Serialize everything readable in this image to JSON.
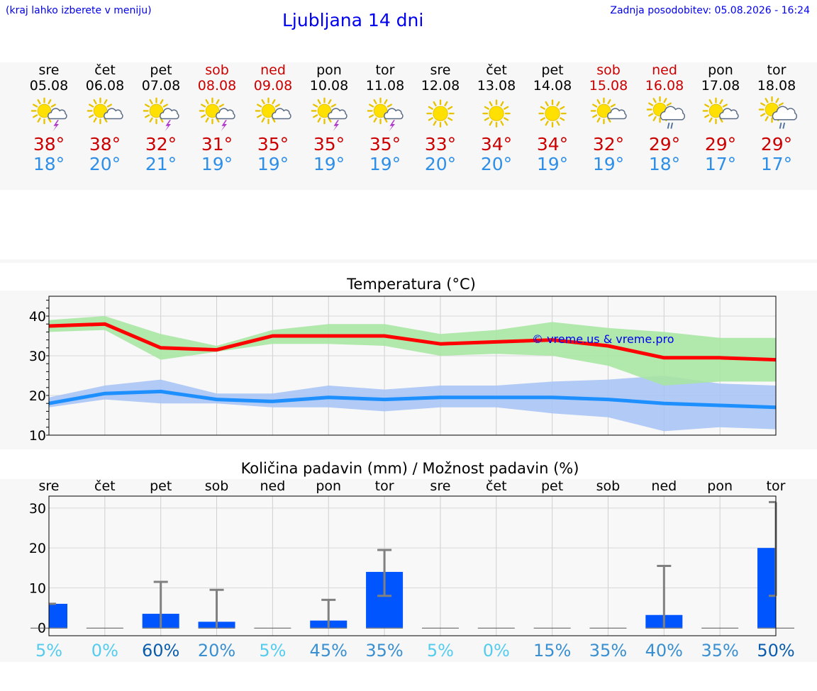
{
  "header": {
    "note": "(kraj lahko izberete v meniju)",
    "title": "Ljubljana 14 dni",
    "updated": "Zadnja posodobitev: 05.08.2026 - 16:24"
  },
  "days": [
    {
      "name": "sre",
      "date": "05.08",
      "weekend": false,
      "icon": "sun-cloud-thunder-icon",
      "tmax": "38°",
      "tmin": "18°"
    },
    {
      "name": "čet",
      "date": "06.08",
      "weekend": false,
      "icon": "sun-cloud-icon",
      "tmax": "38°",
      "tmin": "20°"
    },
    {
      "name": "pet",
      "date": "07.08",
      "weekend": false,
      "icon": "sun-cloud-thunder-icon",
      "tmax": "32°",
      "tmin": "21°"
    },
    {
      "name": "sob",
      "date": "08.08",
      "weekend": true,
      "icon": "sun-cloud-thunder-icon",
      "tmax": "31°",
      "tmin": "19°"
    },
    {
      "name": "ned",
      "date": "09.08",
      "weekend": true,
      "icon": "sun-cloud-icon",
      "tmax": "35°",
      "tmin": "19°"
    },
    {
      "name": "pon",
      "date": "10.08",
      "weekend": false,
      "icon": "sun-cloud-thunder-icon",
      "tmax": "35°",
      "tmin": "19°"
    },
    {
      "name": "tor",
      "date": "11.08",
      "weekend": false,
      "icon": "sun-cloud-thunder-icon",
      "tmax": "35°",
      "tmin": "19°"
    },
    {
      "name": "sre",
      "date": "12.08",
      "weekend": false,
      "icon": "sun-icon",
      "tmax": "33°",
      "tmin": "20°"
    },
    {
      "name": "čet",
      "date": "13.08",
      "weekend": false,
      "icon": "sun-icon",
      "tmax": "34°",
      "tmin": "20°"
    },
    {
      "name": "pet",
      "date": "14.08",
      "weekend": false,
      "icon": "sun-icon",
      "tmax": "34°",
      "tmin": "19°"
    },
    {
      "name": "sob",
      "date": "15.08",
      "weekend": true,
      "icon": "sun-cloud-icon",
      "tmax": "32°",
      "tmin": "19°"
    },
    {
      "name": "ned",
      "date": "16.08",
      "weekend": true,
      "icon": "sun-cloud-rain-icon",
      "tmax": "29°",
      "tmin": "18°"
    },
    {
      "name": "pon",
      "date": "17.08",
      "weekend": false,
      "icon": "sun-cloud-icon",
      "tmax": "29°",
      "tmin": "17°"
    },
    {
      "name": "tor",
      "date": "18.08",
      "weekend": false,
      "icon": "sun-cloud-rain-icon",
      "tmax": "29°",
      "tmin": "17°"
    }
  ],
  "colors": {
    "max_line": "#ff0000",
    "max_band": "#a8e6a3",
    "min_line": "#1e8fff",
    "min_band": "#a9c4f5",
    "bar": "#0055ff",
    "errbar": "#808080",
    "watermark": "#0000ee",
    "weekend": "#cc0000",
    "min_temp": "#2e8fe8"
  },
  "chart_data": [
    {
      "type": "line",
      "title": "Temperatura (°C)",
      "watermark": "© vreme.us & vreme.pro",
      "ylim": [
        10,
        45
      ],
      "yticks": [
        10,
        20,
        30,
        40
      ],
      "x": [
        "05.08",
        "06.08",
        "07.08",
        "08.08",
        "09.08",
        "10.08",
        "11.08",
        "12.08",
        "13.08",
        "14.08",
        "15.08",
        "16.08",
        "17.08",
        "18.08"
      ],
      "series": [
        {
          "role": "max",
          "values": [
            37.5,
            38,
            32,
            31.5,
            35,
            35,
            35,
            33,
            33.5,
            34,
            32.5,
            29.5,
            29.5,
            29
          ],
          "band_high": [
            39,
            40,
            35.5,
            32.5,
            36.5,
            38,
            38,
            35.5,
            36.5,
            38.5,
            37,
            36,
            34.5,
            34.5
          ],
          "band_low": [
            36,
            36.5,
            29,
            31,
            33,
            33,
            32.5,
            30,
            30.5,
            30,
            27.5,
            22.5,
            23.5,
            23.5
          ]
        },
        {
          "role": "min",
          "values": [
            18,
            20.5,
            21,
            19,
            18.5,
            19.5,
            19,
            19.5,
            19.5,
            19.5,
            19,
            18,
            17.5,
            17
          ],
          "band_high": [
            19.5,
            22.5,
            24,
            20.5,
            20.5,
            22.5,
            21.5,
            22.5,
            22.5,
            23.5,
            24,
            25,
            23,
            22.5
          ],
          "band_low": [
            17,
            19,
            18,
            18,
            17,
            17,
            16,
            17,
            17,
            15.5,
            14.5,
            11,
            12,
            11.5
          ]
        }
      ]
    },
    {
      "type": "bar",
      "title": "Količina padavin (mm) / Možnost padavin (%)",
      "ylim": [
        -2,
        33
      ],
      "yticks": [
        0,
        10,
        20,
        30
      ],
      "categories": [
        "sre",
        "čet",
        "pet",
        "sob",
        "ned",
        "pon",
        "tor",
        "sre",
        "čet",
        "pet",
        "sob",
        "ned",
        "pon",
        "tor"
      ],
      "values": [
        6,
        0,
        3.5,
        1.5,
        0,
        1.8,
        14,
        0,
        0,
        0,
        0,
        3.2,
        0,
        20
      ],
      "err_high": [
        6,
        0,
        11.5,
        9.5,
        0,
        7,
        19.5,
        0,
        0,
        0,
        0,
        15.5,
        0,
        31.5
      ],
      "err_low": [
        6,
        0,
        0,
        0,
        0,
        0,
        8,
        0,
        0,
        0,
        0,
        0,
        0,
        8
      ],
      "chance": [
        "5%",
        "0%",
        "60%",
        "20%",
        "5%",
        "45%",
        "35%",
        "5%",
        "0%",
        "15%",
        "35%",
        "40%",
        "35%",
        "50%"
      ],
      "chance_colors": [
        "#55ccee",
        "#55ccee",
        "#0b5cad",
        "#3a8fd0",
        "#55ccee",
        "#3a8fd0",
        "#3a8fd0",
        "#55ccee",
        "#55ccee",
        "#3a8fd0",
        "#3a8fd0",
        "#3a8fd0",
        "#3a8fd0",
        "#0b5cad"
      ]
    }
  ]
}
